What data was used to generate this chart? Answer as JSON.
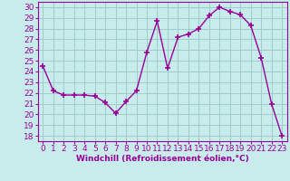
{
  "x": [
    0,
    1,
    2,
    3,
    4,
    5,
    6,
    7,
    8,
    9,
    10,
    11,
    12,
    13,
    14,
    15,
    16,
    17,
    18,
    19,
    20,
    21,
    22,
    23
  ],
  "y": [
    24.5,
    22.2,
    21.8,
    21.8,
    21.8,
    21.7,
    21.1,
    20.1,
    21.2,
    22.2,
    25.8,
    28.7,
    24.3,
    27.2,
    27.5,
    28.0,
    29.2,
    30.0,
    29.6,
    29.3,
    28.3,
    25.3,
    21.0,
    18.0
  ],
  "line_color": "#990099",
  "marker": "+",
  "markersize": 5,
  "linewidth": 1.0,
  "xlabel": "Windchill (Refroidissement éolien,°C)",
  "xlabel_fontsize": 6.5,
  "ylabel_ticks": [
    18,
    19,
    20,
    21,
    22,
    23,
    24,
    25,
    26,
    27,
    28,
    29,
    30
  ],
  "xlim": [
    -0.5,
    23.5
  ],
  "ylim": [
    17.5,
    30.5
  ],
  "background_color": "#c8ecec",
  "grid_color": "#a0cccc",
  "tick_fontsize": 6.5
}
